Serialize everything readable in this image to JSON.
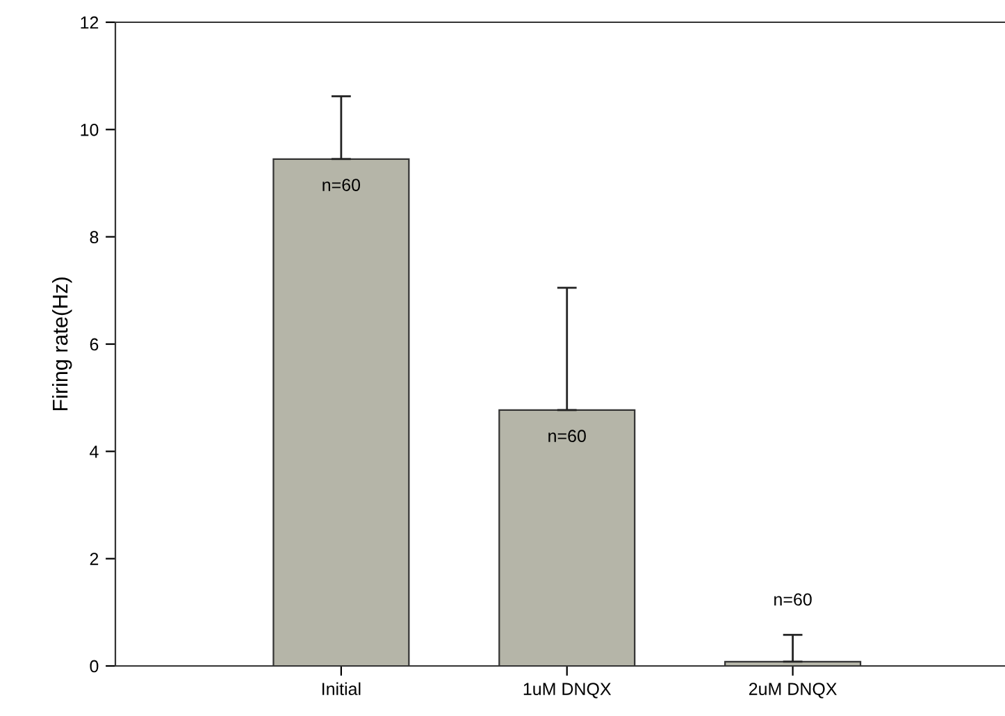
{
  "chart_data": {
    "type": "bar",
    "ylabel": "Firing rate(Hz)",
    "categories": [
      "Initial",
      "1uM DNQX",
      "2uM DNQX"
    ],
    "values": [
      9.45,
      4.77,
      0.08
    ],
    "errors": [
      [
        9.45,
        10.62
      ],
      [
        4.77,
        7.05
      ],
      [
        0.08,
        0.58
      ]
    ],
    "color": "#b5b5a8",
    "ylim": [
      0,
      12
    ],
    "yticks": [
      0,
      2,
      4,
      6,
      8,
      10,
      12
    ],
    "grid": false,
    "annotations": [
      "n=60",
      "n=60",
      "n=60"
    ]
  }
}
